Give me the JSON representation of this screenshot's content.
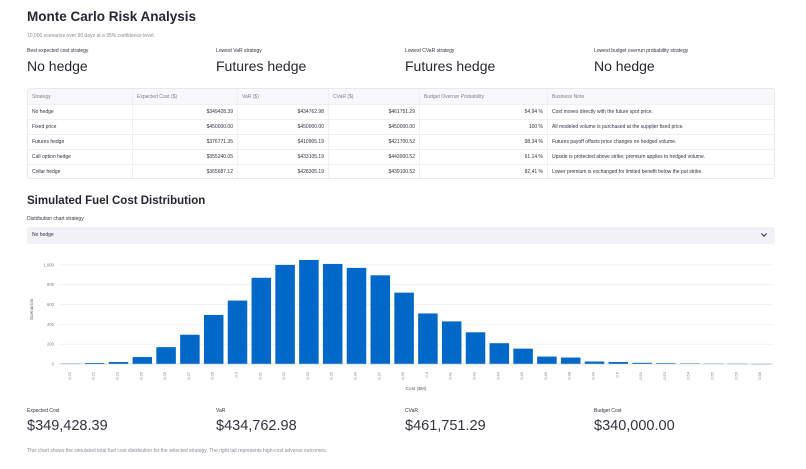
{
  "header": {
    "title": "Monte Carlo Risk Analysis",
    "subtitle": "10,000 scenarios over 90 days at a 95% confidence level."
  },
  "summary_metrics": [
    {
      "label": "Best expected cost strategy",
      "value": "No hedge"
    },
    {
      "label": "Lowest VaR strategy",
      "value": "Futures hedge"
    },
    {
      "label": "Lowest CVaR strategy",
      "value": "Futures hedge"
    },
    {
      "label": "Lowest budget overrun probability strategy",
      "value": "No hedge"
    }
  ],
  "table": {
    "columns": [
      "Strategy",
      "Expected Cost ($)",
      "VaR ($)",
      "CVaR ($)",
      "Budget Overrun Probability",
      "Business Note"
    ],
    "rows": [
      [
        "No hedge",
        "$349428.39",
        "$434762.98",
        "$461751.29",
        "54,94 %",
        "Cost moves directly with the future spot price."
      ],
      [
        "Fixed price",
        "$450000.00",
        "$450000.00",
        "$450000.00",
        "100 %",
        "All modeled volume is purchased at the supplier fixed price."
      ],
      [
        "Futures hedge",
        "$376771.35",
        "$410905.19",
        "$421700.52",
        "98,34 %",
        "Futures payoff offsets price changes on hedged volume."
      ],
      [
        "Call option hedge",
        "$355240.05",
        "$433105.19",
        "$443900.52",
        "61,14 %",
        "Upside is protected above strike; premium applies to hedged volume."
      ],
      [
        "Collar hedge",
        "$365687.12",
        "$428305.19",
        "$439100.52",
        "82,41 %",
        "Lower premium is exchanged for limited benefit below the put strike."
      ]
    ]
  },
  "distribution": {
    "section_title": "Simulated Fuel Cost Distribution",
    "select_label": "Distribution chart strategy",
    "selected_value": "No hedge"
  },
  "chart_data": {
    "type": "bar",
    "title": "",
    "xlabel": "Cost ($M)",
    "ylabel": "Scenarios",
    "ylim": [
      0,
      1100
    ],
    "yticks": [
      0,
      200,
      400,
      600,
      800,
      1000
    ],
    "ytick_labels": [
      "0",
      "200",
      "400",
      "600",
      "800",
      "1,000"
    ],
    "grid": true,
    "bar_color": "#0068c9",
    "categories": [
      "0.21",
      "0.22",
      "0.23",
      "0.26",
      "0.26",
      "0.27",
      "0.28",
      "0.3",
      "0.31",
      "0.32",
      "0.33",
      "0.35",
      "0.36",
      "0.37",
      "0.39",
      "0.4",
      "0.41",
      "0.42",
      "0.44",
      "0.45",
      "0.46",
      "0.48",
      "0.49",
      "0.5",
      "0.51",
      "0.53",
      "0.54",
      "0.55",
      "0.56",
      "0.58"
    ],
    "values": [
      5,
      10,
      20,
      70,
      170,
      295,
      495,
      640,
      870,
      1000,
      1050,
      1010,
      970,
      895,
      720,
      510,
      430,
      320,
      210,
      155,
      75,
      65,
      25,
      20,
      12,
      8,
      6,
      4,
      3,
      2
    ]
  },
  "bottom_metrics": [
    {
      "label": "Expected Cost",
      "value": "$349,428.39"
    },
    {
      "label": "VaR",
      "value": "$434,762.98"
    },
    {
      "label": "CVaR",
      "value": "$461,751.29"
    },
    {
      "label": "Budget Cost",
      "value": "$340,000.00"
    }
  ],
  "caption": "This chart shows the simulated total fuel cost distribution for the selected strategy. The right tail represents high-cost adverse outcomes.",
  "icons": {
    "select_chevron": "chevron-down-icon"
  }
}
